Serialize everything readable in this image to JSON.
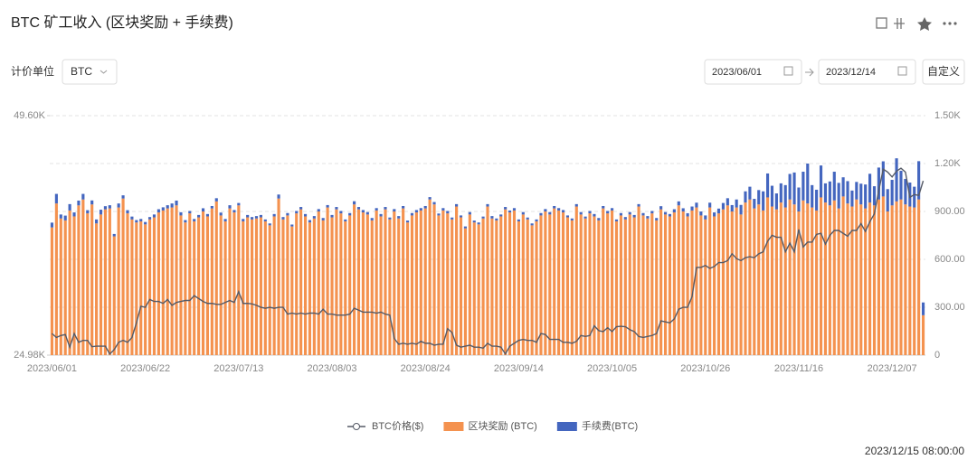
{
  "header": {
    "title": "BTC 矿工收入 (区块奖励 + 手续费)"
  },
  "toolbar": {
    "unit_label": "计价单位",
    "unit": "BTC",
    "start_date": "2023/06/01",
    "end_date": "2023/12/14",
    "custom": "自定义"
  },
  "timestamp": "2023/12/15 08:00:00",
  "chart_data": {
    "type": "bar",
    "stacked": true,
    "grid": true,
    "legend": "bottom",
    "categories": [
      "2023/06/01",
      null,
      null,
      null,
      null,
      null,
      null,
      null,
      null,
      null,
      null,
      null,
      null,
      null,
      null,
      null,
      null,
      null,
      null,
      null,
      null,
      "2023/06/22",
      null,
      null,
      null,
      null,
      null,
      null,
      null,
      null,
      null,
      null,
      null,
      null,
      null,
      null,
      null,
      null,
      null,
      null,
      null,
      null,
      "2023/07/13",
      null,
      null,
      null,
      null,
      null,
      null,
      null,
      null,
      null,
      null,
      null,
      null,
      null,
      null,
      null,
      null,
      null,
      null,
      null,
      null,
      "2023/08/03",
      null,
      null,
      null,
      null,
      null,
      null,
      null,
      null,
      null,
      null,
      null,
      null,
      null,
      null,
      null,
      null,
      null,
      null,
      null,
      null,
      "2023/08/24",
      null,
      null,
      null,
      null,
      null,
      null,
      null,
      null,
      null,
      null,
      null,
      null,
      null,
      null,
      null,
      null,
      null,
      null,
      null,
      null,
      "2023/09/14",
      null,
      null,
      null,
      null,
      null,
      null,
      null,
      null,
      null,
      null,
      null,
      null,
      null,
      null,
      null,
      null,
      null,
      null,
      null,
      null,
      "2023/10/05",
      null,
      null,
      null,
      null,
      null,
      null,
      null,
      null,
      null,
      null,
      null,
      null,
      null,
      null,
      null,
      null,
      null,
      null,
      null,
      null,
      "2023/10/26",
      null,
      null,
      null,
      null,
      null,
      null,
      null,
      null,
      null,
      null,
      null,
      null,
      null,
      null,
      null,
      null,
      null,
      null,
      null,
      null,
      "2023/11/16",
      null,
      null,
      null,
      null,
      null,
      null,
      null,
      null,
      null,
      null,
      null,
      null,
      null,
      null,
      null,
      null,
      null,
      null,
      null,
      null,
      "2023/12/07",
      null,
      null,
      null,
      null,
      null,
      null,
      null
    ],
    "ylim": [
      24980,
      49600
    ],
    "yticks": [
      {
        "value": 24980,
        "label": "24.98K"
      },
      {
        "value": 49600,
        "label": "49.60K"
      }
    ],
    "y2lim": [
      0,
      1500
    ],
    "y2ticks": [
      0,
      {
        "value": 300,
        "label": "300.00"
      },
      {
        "value": 600,
        "label": "600.00"
      },
      {
        "value": 900,
        "label": "900.00"
      },
      {
        "value": 1200,
        "label": "1.20K"
      },
      {
        "value": 1500,
        "label": "1.50K"
      }
    ],
    "series": [
      {
        "name": "BTC价格($)",
        "type": "line",
        "color": "#555a66",
        "values": [
          27200,
          26800,
          27000,
          27100,
          25800,
          27200,
          26300,
          26500,
          26500,
          25850,
          25900,
          25900,
          25900,
          25100,
          25550,
          26300,
          26500,
          26300,
          26800,
          28300,
          30000,
          29900,
          30700,
          30500,
          30500,
          30300,
          30700,
          30100,
          30400,
          30500,
          30600,
          30600,
          31100,
          30800,
          30500,
          30300,
          30300,
          30200,
          30200,
          30400,
          30600,
          30400,
          31500,
          30300,
          30300,
          30250,
          30100,
          29900,
          29800,
          29900,
          29800,
          29900,
          29900,
          29200,
          29300,
          29200,
          29300,
          29200,
          29300,
          29300,
          29200,
          29700,
          29200,
          29200,
          29100,
          29100,
          29100,
          29200,
          29800,
          29600,
          29400,
          29400,
          29400,
          29300,
          29400,
          29200,
          29100,
          26700,
          26100,
          26200,
          26100,
          26200,
          26100,
          26400,
          26200,
          26200,
          26000,
          26100,
          26100,
          27700,
          27300,
          26000,
          25800,
          25900,
          26000,
          25800,
          25800,
          25700,
          26200,
          25900,
          25900,
          25800,
          25100,
          25900,
          26200,
          26500,
          26600,
          26500,
          26500,
          26300,
          27200,
          27100,
          26600,
          26600,
          26600,
          26300,
          26300,
          26200,
          26400,
          27000,
          26900,
          27000,
          28000,
          27500,
          27400,
          27800,
          27400,
          27900,
          27950,
          27900,
          27600,
          27400,
          26900,
          26800,
          26900,
          27000,
          27200,
          28500,
          28400,
          28300,
          28700,
          29700,
          29900,
          29900,
          31000,
          34000,
          34000,
          34200,
          33900,
          34100,
          34500,
          34500,
          34700,
          35400,
          34900,
          34700,
          35000,
          35100,
          35000,
          35400,
          35600,
          36700,
          37300,
          37100,
          37100,
          35600,
          36500,
          35600,
          37900,
          36100,
          36600,
          36600,
          37400,
          37500,
          36400,
          37300,
          37800,
          37800,
          37500,
          37200,
          37800,
          37800,
          38500,
          37700,
          38700,
          39500,
          41900,
          44100,
          43800,
          43300,
          43900,
          44200,
          43800,
          41200,
          41500,
          41400,
          42900
        ]
      },
      {
        "name": "区块奖励 (BTC)",
        "type": "bar",
        "axis": "y2",
        "color": "#f4924f",
        "values": [
          800,
          950,
          856,
          844,
          906,
          869,
          938,
          975,
          888,
          944,
          825,
          881,
          913,
          919,
          744,
          925,
          981,
          888,
          850,
          831,
          838,
          819,
          850,
          863,
          894,
          906,
          919,
          925,
          938,
          875,
          831,
          888,
          838,
          863,
          900,
          869,
          919,
          963,
          875,
          838,
          919,
          894,
          938,
          838,
          863,
          850,
          856,
          863,
          838,
          813,
          869,
          981,
          850,
          875,
          806,
          888,
          913,
          869,
          831,
          856,
          900,
          844,
          925,
          863,
          913,
          888,
          838,
          875,
          944,
          913,
          894,
          881,
          844,
          906,
          869,
          913,
          850,
          900,
          856,
          919,
          831,
          875,
          894,
          906,
          919,
          975,
          944,
          875,
          906,
          888,
          850,
          931,
          863,
          794,
          881,
          831,
          819,
          856,
          931,
          856,
          844,
          869,
          913,
          894,
          906,
          838,
          881,
          850,
          813,
          838,
          875,
          900,
          881,
          919,
          906,
          894,
          863,
          844,
          931,
          881,
          856,
          888,
          869,
          844,
          919,
          888,
          906,
          838,
          875,
          850,
          881,
          863,
          931,
          875,
          856,
          888,
          844,
          913,
          881,
          869,
          894,
          938,
          900,
          869,
          906,
          925,
          875,
          850,
          925,
          869,
          888,
          913,
          938,
          900,
          925,
          881,
          956,
          975,
          919,
          944,
          906,
          988,
          931,
          913,
          956,
          925,
          975,
          944,
          900,
          969,
          950,
          925,
          906,
          988,
          956,
          938,
          969,
          919,
          994,
          950,
          931,
          975,
          944,
          919,
          956,
          938,
          975,
          994,
          900,
          938,
          963,
          975,
          944,
          931,
          925,
          975,
          250
        ]
      },
      {
        "name": "手续费(BTC)",
        "type": "bar",
        "axis": "y2",
        "color": "#4466bf",
        "values": [
          30,
          60,
          25,
          30,
          40,
          25,
          30,
          35,
          20,
          25,
          25,
          30,
          20,
          20,
          15,
          25,
          20,
          20,
          18,
          15,
          15,
          15,
          15,
          18,
          20,
          20,
          20,
          25,
          30,
          20,
          15,
          15,
          15,
          15,
          20,
          15,
          15,
          20,
          18,
          15,
          20,
          15,
          15,
          15,
          15,
          15,
          15,
          15,
          12,
          12,
          15,
          25,
          15,
          15,
          12,
          15,
          15,
          15,
          15,
          15,
          15,
          15,
          15,
          15,
          15,
          15,
          12,
          15,
          20,
          15,
          15,
          15,
          15,
          15,
          15,
          15,
          12,
          15,
          15,
          15,
          12,
          15,
          15,
          15,
          15,
          15,
          15,
          12,
          15,
          15,
          12,
          15,
          12,
          12,
          15,
          12,
          12,
          12,
          15,
          15,
          12,
          12,
          15,
          12,
          15,
          12,
          15,
          12,
          12,
          12,
          15,
          15,
          15,
          15,
          15,
          15,
          12,
          12,
          15,
          15,
          12,
          15,
          15,
          15,
          15,
          15,
          15,
          12,
          15,
          15,
          15,
          15,
          15,
          15,
          15,
          15,
          15,
          20,
          15,
          15,
          20,
          25,
          20,
          20,
          25,
          30,
          25,
          25,
          30,
          25,
          30,
          40,
          45,
          40,
          50,
          60,
          70,
          80,
          60,
          90,
          120,
          150,
          130,
          100,
          120,
          140,
          160,
          200,
          150,
          180,
          250,
          140,
          130,
          200,
          120,
          150,
          180,
          160,
          120,
          140,
          100,
          110,
          130,
          150,
          180,
          120,
          200,
          220,
          140,
          160,
          270,
          180,
          160,
          150,
          130,
          240,
          80
        ]
      }
    ]
  }
}
